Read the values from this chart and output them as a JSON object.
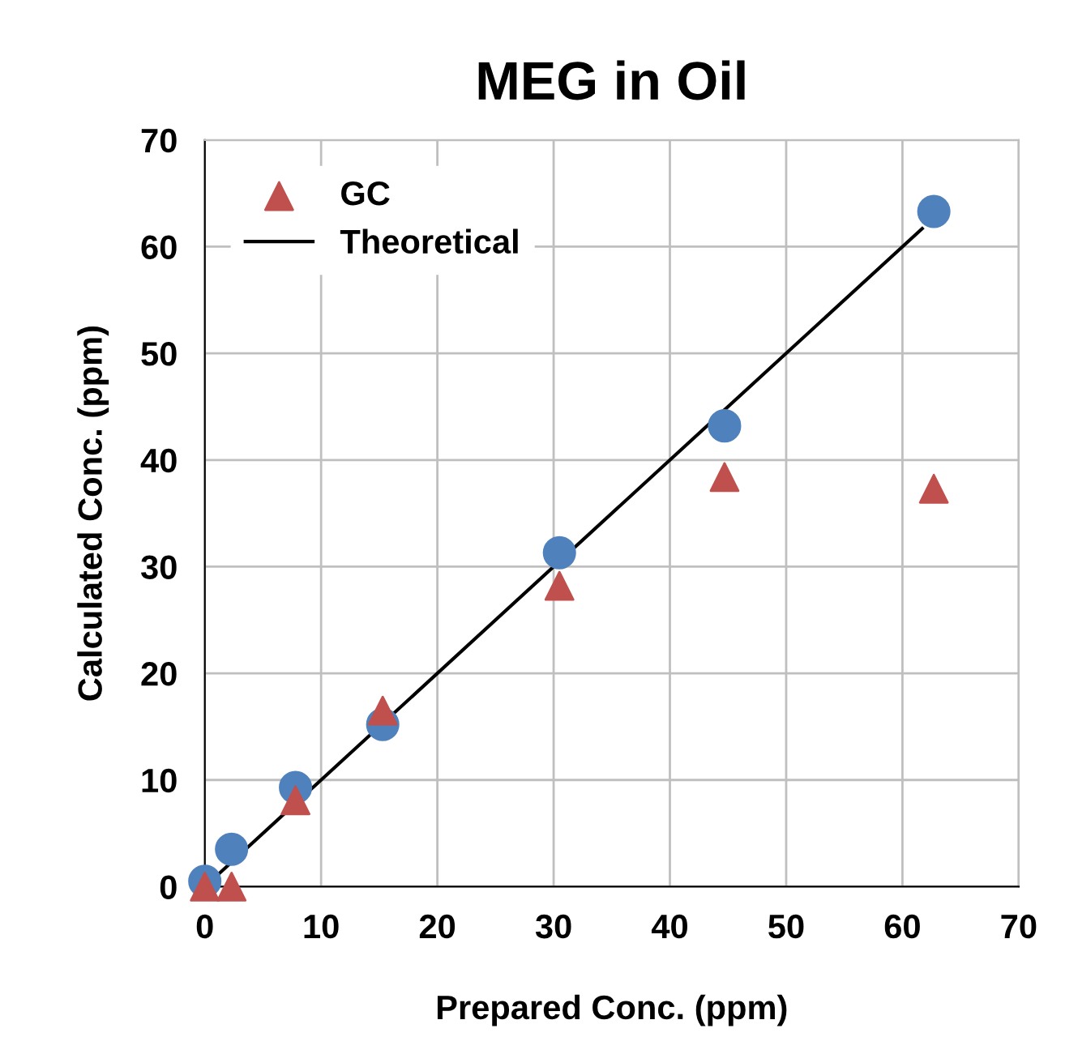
{
  "chart_data": {
    "type": "scatter",
    "title": "MEG in Oil",
    "xlabel": "Prepared Conc. (ppm)",
    "ylabel": "Calculated Conc. (ppm)",
    "xlim": [
      0,
      70
    ],
    "ylim": [
      0,
      70
    ],
    "xticks": [
      0,
      10,
      20,
      30,
      40,
      50,
      60,
      70
    ],
    "yticks": [
      0,
      10,
      20,
      30,
      40,
      50,
      60,
      70
    ],
    "grid": true,
    "legend": "top left",
    "series": [
      {
        "marker": "circle",
        "color": "#4f81bd",
        "x": [
          0,
          2.3,
          7.8,
          15.3,
          30.5,
          44.7,
          62.7
        ],
        "values": [
          0.5,
          3.5,
          9.3,
          15.2,
          31.3,
          43.2,
          63.3
        ]
      },
      {
        "name": "GC",
        "marker": "triangle",
        "color": "#c0504d",
        "x": [
          0,
          2.3,
          7.8,
          15.3,
          30.5,
          44.7,
          62.7
        ],
        "values": [
          0,
          0,
          8.1,
          16.5,
          28.2,
          38.4,
          37.3
        ]
      },
      {
        "type": "line",
        "name": "Theoretical",
        "marker": "none",
        "line_style": "solid",
        "color": "#000000",
        "x": [
          0,
          61.7
        ],
        "values": [
          0,
          61.7
        ]
      }
    ]
  }
}
